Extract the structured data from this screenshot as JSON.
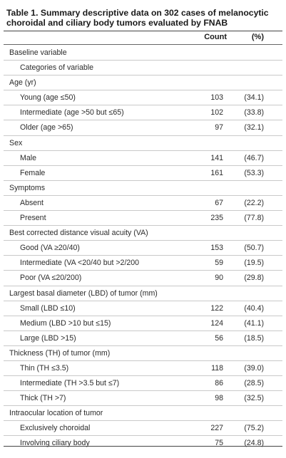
{
  "title": "Table 1. Summary descriptive data on 302 cases of melanocytic choroidal and ciliary body tumors evaluated by FNAB",
  "header": {
    "count": "Count",
    "pct": "(%)"
  },
  "rows": [
    {
      "label": "Baseline variable",
      "count": "",
      "pct": "",
      "level": 0
    },
    {
      "label": "Categories of variable",
      "count": "",
      "pct": "",
      "level": 1
    },
    {
      "label": "Age (yr)",
      "count": "",
      "pct": "",
      "level": 0
    },
    {
      "label": "Young (age ≤50)",
      "count": "103",
      "pct": "(34.1)",
      "level": 1
    },
    {
      "label": "Intermediate (age >50 but ≤65)",
      "count": "102",
      "pct": "(33.8)",
      "level": 1
    },
    {
      "label": "Older (age >65)",
      "count": "97",
      "pct": "(32.1)",
      "level": 1
    },
    {
      "label": "Sex",
      "count": "",
      "pct": "",
      "level": 0
    },
    {
      "label": "Male",
      "count": "141",
      "pct": "(46.7)",
      "level": 1
    },
    {
      "label": "Female",
      "count": "161",
      "pct": "(53.3)",
      "level": 1
    },
    {
      "label": "Symptoms",
      "count": "",
      "pct": "",
      "level": 0
    },
    {
      "label": "Absent",
      "count": "67",
      "pct": "(22.2)",
      "level": 1
    },
    {
      "label": "Present",
      "count": "235",
      "pct": "(77.8)",
      "level": 1
    },
    {
      "label": "Best corrected distance visual acuity (VA)",
      "count": "",
      "pct": "",
      "level": 0
    },
    {
      "label": "Good (VA ≥20/40)",
      "count": "153",
      "pct": "(50.7)",
      "level": 1
    },
    {
      "label": "Intermediate (VA <20/40 but >2/200",
      "count": "59",
      "pct": "(19.5)",
      "level": 1
    },
    {
      "label": "Poor (VA ≤20/200)",
      "count": "90",
      "pct": "(29.8)",
      "level": 1
    },
    {
      "label": "Largest basal diameter (LBD) of tumor (mm)",
      "count": "",
      "pct": "",
      "level": 0
    },
    {
      "label": "Small (LBD ≤10)",
      "count": "122",
      "pct": "(40.4)",
      "level": 1
    },
    {
      "label": "Medium (LBD >10 but ≤15)",
      "count": "124",
      "pct": "(41.1)",
      "level": 1
    },
    {
      "label": "Large (LBD >15)",
      "count": "56",
      "pct": "(18.5)",
      "level": 1
    },
    {
      "label": "Thickness (TH) of tumor (mm)",
      "count": "",
      "pct": "",
      "level": 0
    },
    {
      "label": "Thin (TH ≤3.5)",
      "count": "118",
      "pct": "(39.0)",
      "level": 1
    },
    {
      "label": "Intermediate (TH >3.5 but ≤7)",
      "count": "86",
      "pct": "(28.5)",
      "level": 1
    },
    {
      "label": "Thick (TH >7)",
      "count": "98",
      "pct": "(32.5)",
      "level": 1
    },
    {
      "label": "Intraocular location of tumor",
      "count": "",
      "pct": "",
      "level": 0
    },
    {
      "label": "Exclusively choroidal",
      "count": "227",
      "pct": "(75.2)",
      "level": 1
    },
    {
      "label": "Involving ciliary body",
      "count": "75",
      "pct": "(24.8)",
      "level": 1
    }
  ]
}
